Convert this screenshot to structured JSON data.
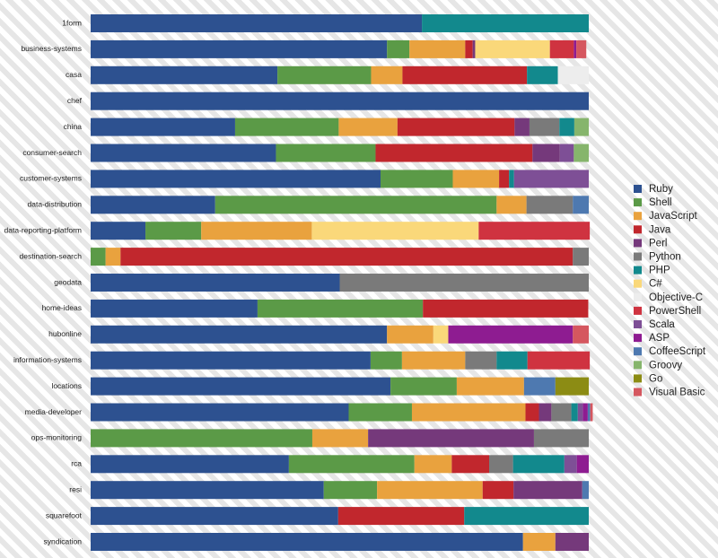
{
  "chart_data": {
    "type": "bar",
    "orientation": "horizontal",
    "stacked": true,
    "normalized": true,
    "legend_position": "right",
    "categories": [
      "1form",
      "business-systems",
      "casa",
      "chef",
      "china",
      "consumer-search",
      "customer-systems",
      "data-distribution",
      "data-reporting-platform",
      "destination-search",
      "geodata",
      "home-ideas",
      "hubonline",
      "information-systems",
      "locations",
      "media-developer",
      "ops-monitoring",
      "rca",
      "resi",
      "squarefoot",
      "syndication"
    ],
    "series": [
      {
        "name": "Ruby",
        "color": "#2d5190",
        "values": [
          0.665,
          0.595,
          0.375,
          1.0,
          0.29,
          0.372,
          0.582,
          0.25,
          0.11,
          0.0,
          0.5,
          0.335,
          0.595,
          0.562,
          0.602,
          0.518,
          0.0,
          0.398,
          0.468,
          0.497,
          0.868
        ]
      },
      {
        "name": "Shell",
        "color": "#5b9a47",
        "values": [
          0,
          0.045,
          0.188,
          0,
          0.208,
          0.2,
          0.145,
          0.565,
          0.112,
          0.03,
          0,
          0.332,
          0,
          0.063,
          0.133,
          0.127,
          0.445,
          0.252,
          0.107,
          0,
          0
        ]
      },
      {
        "name": "JavaScript",
        "color": "#e9a23e",
        "values": [
          0,
          0.112,
          0.063,
          0,
          0.118,
          0,
          0.093,
          0.06,
          0.222,
          0.03,
          0,
          0,
          0.093,
          0.127,
          0.135,
          0.228,
          0.112,
          0.075,
          0.212,
          0,
          0.065
        ]
      },
      {
        "name": "Java",
        "color": "#c1272d",
        "values": [
          0,
          0.015,
          0.25,
          0,
          0.235,
          0.315,
          0.02,
          0,
          0,
          0.908,
          0,
          0.332,
          0,
          0,
          0,
          0.027,
          0,
          0.075,
          0.062,
          0.253,
          0
        ]
      },
      {
        "name": "Perl",
        "color": "#75397b",
        "values": [
          0,
          0.005,
          0,
          0,
          0.03,
          0.055,
          0,
          0,
          0,
          0,
          0,
          0,
          0,
          0,
          0,
          0.025,
          0.333,
          0,
          0.138,
          0,
          0.067
        ]
      },
      {
        "name": "Python",
        "color": "#7a7a7a",
        "values": [
          0,
          0,
          0,
          0,
          0.06,
          0,
          0,
          0.093,
          0,
          0.032,
          0.5,
          0,
          0,
          0.063,
          0,
          0.04,
          0.11,
          0.048,
          0,
          0,
          0
        ]
      },
      {
        "name": "PHP",
        "color": "#12898d",
        "values": [
          0.335,
          0,
          0.062,
          0,
          0.03,
          0,
          0.01,
          0,
          0,
          0,
          0,
          0,
          0,
          0.062,
          0,
          0.013,
          0,
          0.103,
          0,
          0.25,
          0
        ]
      },
      {
        "name": "C#",
        "color": "#fad87a",
        "values": [
          0,
          0.15,
          0,
          0,
          0,
          0,
          0,
          0,
          0.335,
          0,
          0,
          0,
          0.03,
          0,
          0,
          0,
          0,
          0,
          0,
          0,
          0
        ]
      },
      {
        "name": "Objective-C",
        "color": "#ededed",
        "values": [
          0,
          0,
          0.062,
          0,
          0,
          0,
          0,
          0,
          0,
          0,
          0,
          0,
          0,
          0,
          0,
          0,
          0,
          0,
          0,
          0,
          0
        ]
      },
      {
        "name": "PowerShell",
        "color": "#cf3340",
        "values": [
          0,
          0.048,
          0,
          0,
          0,
          0,
          0,
          0,
          0.223,
          0,
          0,
          0,
          0,
          0.125,
          0,
          0,
          0,
          0,
          0,
          0,
          0
        ]
      },
      {
        "name": "Scala",
        "color": "#7e4f96",
        "values": [
          0,
          0,
          0,
          0,
          0,
          0.028,
          0.15,
          0,
          0,
          0,
          0,
          0,
          0,
          0,
          0,
          0.01,
          0,
          0.025,
          0,
          0,
          0
        ]
      },
      {
        "name": "ASP",
        "color": "#8e1c91",
        "values": [
          0,
          0.005,
          0,
          0,
          0,
          0,
          0,
          0,
          0,
          0,
          0,
          0,
          0.25,
          0,
          0,
          0.01,
          0,
          0.024,
          0,
          0,
          0
        ]
      },
      {
        "name": "CoffeeScript",
        "color": "#4e79b0",
        "values": [
          0,
          0,
          0,
          0,
          0,
          0,
          0,
          0.032,
          0,
          0,
          0,
          0,
          0,
          0,
          0.063,
          0.005,
          0,
          0,
          0.013,
          0,
          0
        ]
      },
      {
        "name": "Groovy",
        "color": "#86b56c",
        "values": [
          0,
          0,
          0,
          0,
          0.029,
          0.03,
          0,
          0,
          0,
          0,
          0,
          0,
          0,
          0,
          0,
          0,
          0,
          0,
          0,
          0,
          0
        ]
      },
      {
        "name": "Go",
        "color": "#8c8c14",
        "values": [
          0,
          0,
          0,
          0,
          0,
          0,
          0,
          0,
          0,
          0,
          0,
          0,
          0,
          0,
          0.067,
          0,
          0,
          0,
          0,
          0,
          0
        ]
      },
      {
        "name": "Visual Basic",
        "color": "#d5575f",
        "values": [
          0,
          0.02,
          0,
          0,
          0,
          0,
          0,
          0,
          0,
          0,
          0,
          0,
          0.032,
          0,
          0,
          0.005,
          0,
          0,
          0,
          0,
          0
        ]
      }
    ]
  }
}
